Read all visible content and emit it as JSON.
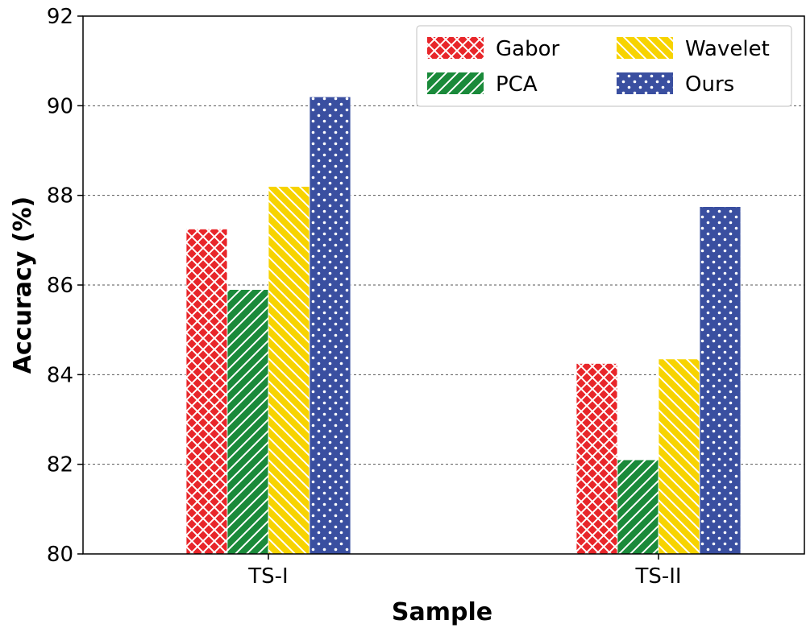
{
  "chart_data": {
    "type": "bar",
    "title": "",
    "xlabel": "Sample",
    "ylabel": "Accuracy (%)",
    "categories": [
      "TS-I",
      "TS-II"
    ],
    "ylim": [
      80,
      92
    ],
    "yticks": [
      80,
      82,
      84,
      86,
      88,
      90,
      92
    ],
    "grid": true,
    "legend_position": "top-right",
    "series": [
      {
        "name": "Gabor",
        "values": [
          87.25,
          84.25
        ],
        "color": "#e8262a",
        "pattern": "crosshatch"
      },
      {
        "name": "PCA",
        "values": [
          85.9,
          82.1
        ],
        "color": "#1a8a3a",
        "pattern": "diagonal"
      },
      {
        "name": "Wavelet",
        "values": [
          88.2,
          84.35
        ],
        "color": "#f7d300",
        "pattern": "back-diagonal"
      },
      {
        "name": "Ours",
        "values": [
          90.2,
          87.75
        ],
        "color": "#3a4fa0",
        "pattern": "dots"
      }
    ]
  }
}
